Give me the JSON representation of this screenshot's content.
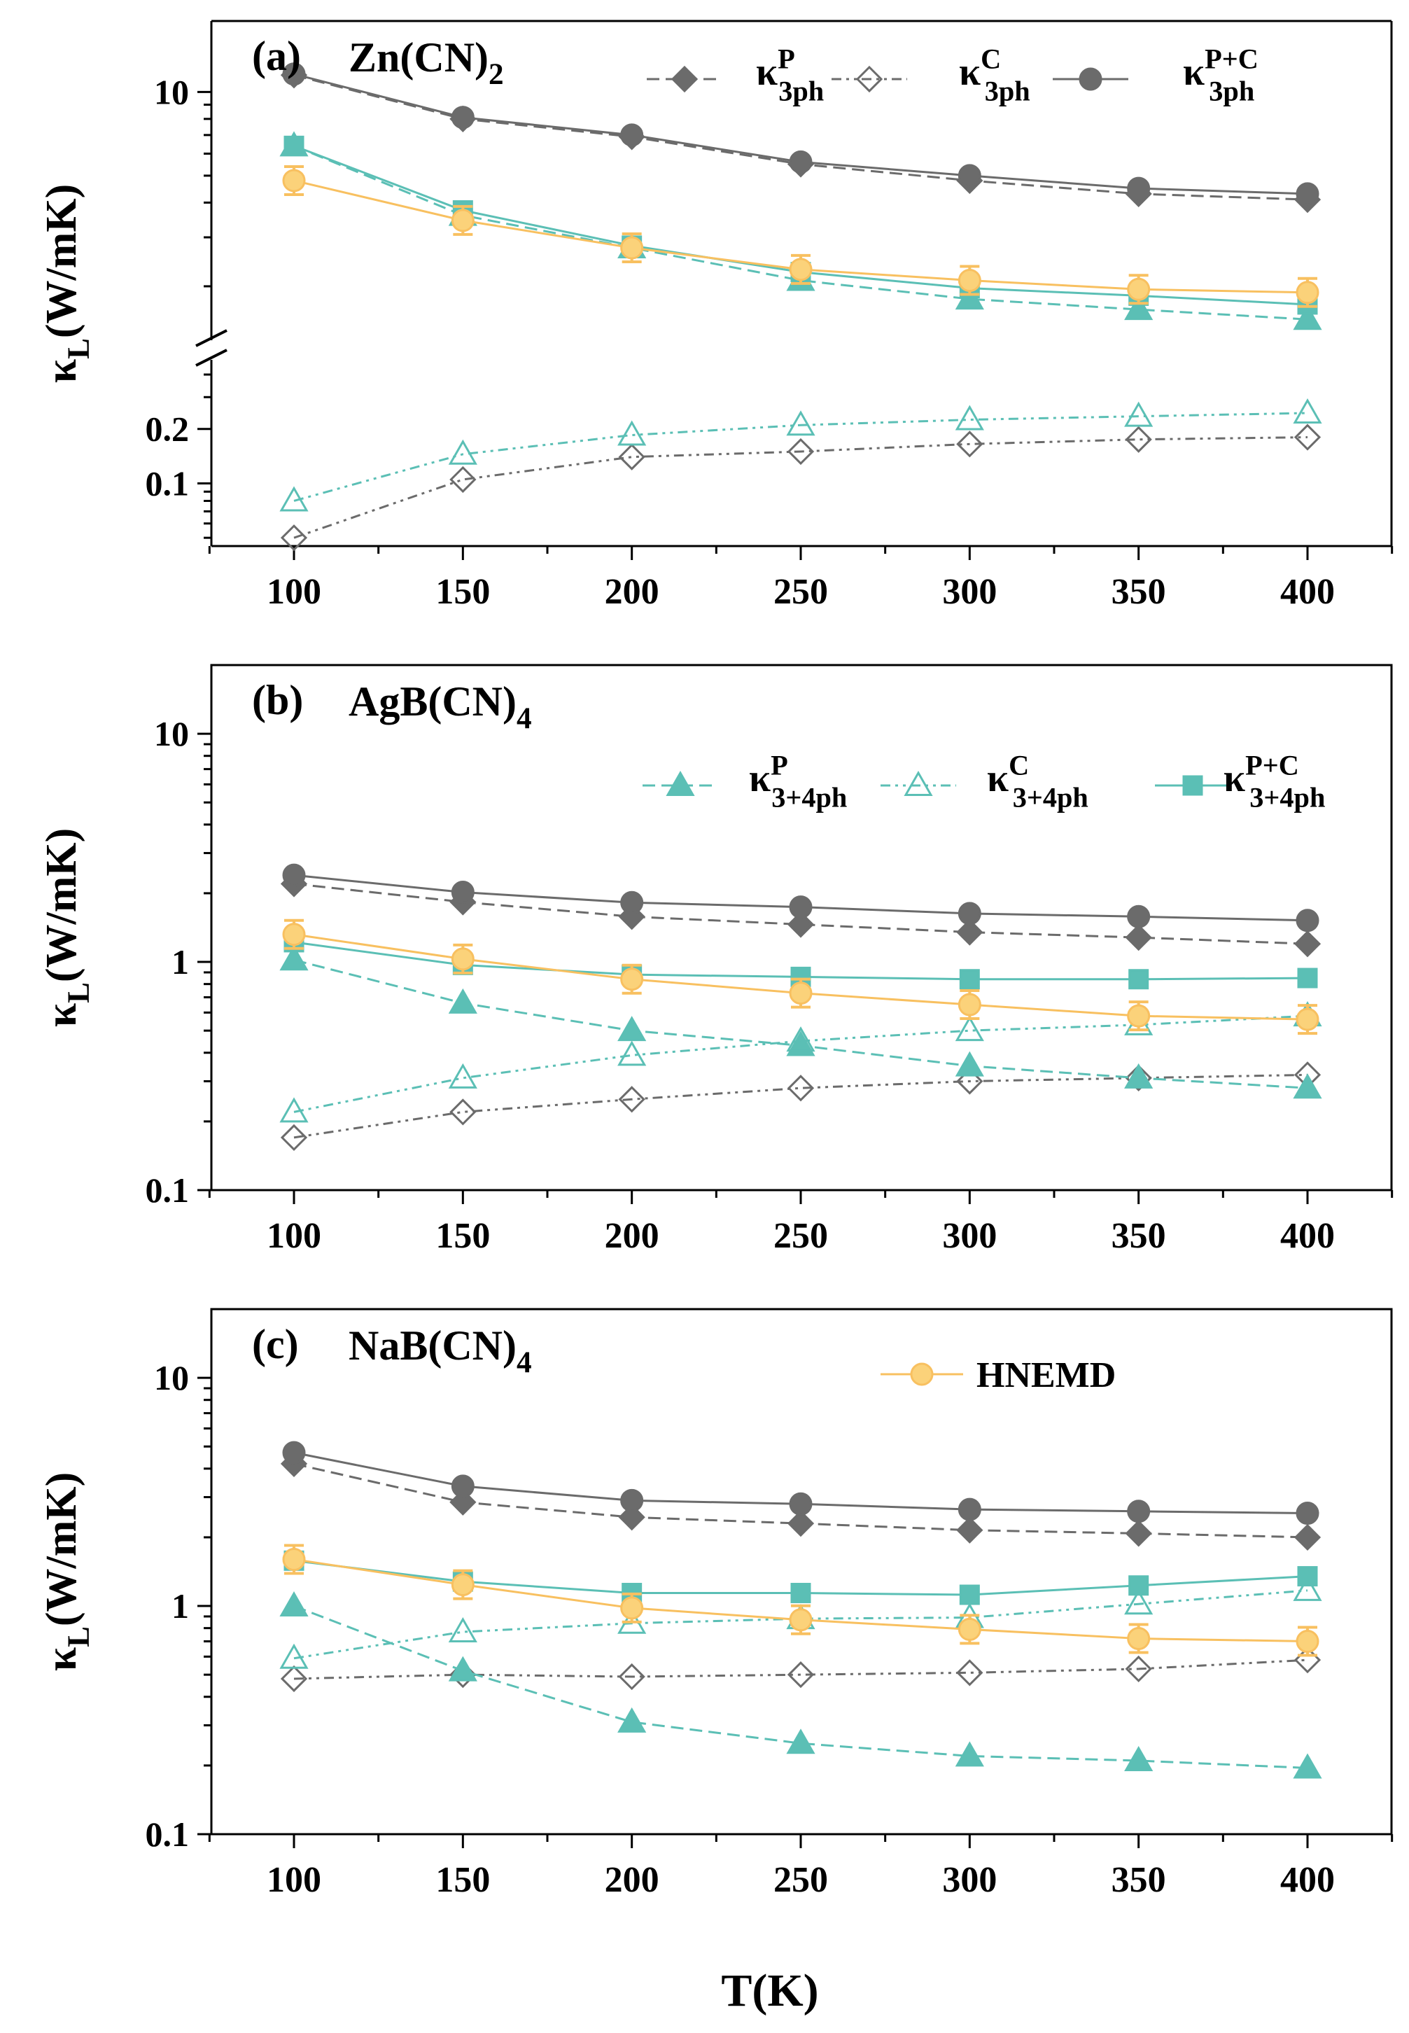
{
  "colors": {
    "gray": "#6b6b6b",
    "teal": "#5bbfb5",
    "orange": "#f8c060",
    "orange_fill": "#fbd27a"
  },
  "chart_data": [
    {
      "type": "line",
      "panel_label": "(a)",
      "material": {
        "base": "Zn(CN)",
        "sub": "2"
      },
      "yscale": "log (broken axis)",
      "ylabel": {
        "base": "κ",
        "sub": "L",
        "rest": "(W/mK)"
      },
      "ylim_upper": [
        1.25,
        18
      ],
      "ylim_lower": [
        0.045,
        0.5
      ],
      "ytick_labels": [
        "10",
        "0.2",
        "0.1"
      ],
      "x": [
        100,
        150,
        200,
        250,
        300,
        350,
        400
      ],
      "xtick_labels": [
        "100",
        "150",
        "200",
        "250",
        "300",
        "350",
        "400"
      ],
      "legend": [
        {
          "base": "κ",
          "sub": "3ph",
          "sup": "P"
        },
        {
          "base": "κ",
          "sub": "3ph",
          "sup": "C"
        },
        {
          "base": "κ",
          "sub": "3ph",
          "sup": "P+C"
        }
      ],
      "series": [
        {
          "name": "κ3ph P",
          "values": [
            11.5,
            8.0,
            6.9,
            5.5,
            4.8,
            4.3,
            4.1
          ]
        },
        {
          "name": "κ3ph C",
          "values": [
            0.05,
            0.105,
            0.14,
            0.15,
            0.165,
            0.175,
            0.18
          ]
        },
        {
          "name": "κ3ph P+C",
          "values": [
            11.6,
            8.1,
            7.0,
            5.6,
            5.0,
            4.5,
            4.3
          ]
        },
        {
          "name": "κ3+4ph P",
          "values": [
            6.4,
            3.6,
            2.75,
            2.1,
            1.8,
            1.65,
            1.52
          ]
        },
        {
          "name": "κ3+4ph C",
          "values": [
            0.08,
            0.145,
            0.185,
            0.21,
            0.225,
            0.235,
            0.245
          ]
        },
        {
          "name": "κ3+4ph P+C",
          "values": [
            6.4,
            3.75,
            2.8,
            2.25,
            1.97,
            1.85,
            1.72
          ]
        },
        {
          "name": "HNEMD",
          "values": [
            4.8,
            3.45,
            2.75,
            2.3,
            2.1,
            1.95,
            1.9
          ]
        }
      ]
    },
    {
      "type": "line",
      "panel_label": "(b)",
      "material": {
        "base": "AgB(CN)",
        "sub": "4"
      },
      "yscale": "log",
      "ylabel": {
        "base": "κ",
        "sub": "L",
        "rest": "(W/mK)"
      },
      "ylim": [
        0.1,
        20
      ],
      "ytick_labels": [
        "10",
        "1",
        "0.1"
      ],
      "x": [
        100,
        150,
        200,
        250,
        300,
        350,
        400
      ],
      "xtick_labels": [
        "100",
        "150",
        "200",
        "250",
        "300",
        "350",
        "400"
      ],
      "legend": [
        {
          "base": "κ",
          "sub": "3+4ph",
          "sup": "P"
        },
        {
          "base": "κ",
          "sub": "3+4ph",
          "sup": "C"
        },
        {
          "base": "κ",
          "sub": "3+4ph",
          "sup": "P+C"
        }
      ],
      "series": [
        {
          "name": "κ3ph P",
          "values": [
            2.2,
            1.83,
            1.58,
            1.46,
            1.35,
            1.28,
            1.2
          ]
        },
        {
          "name": "κ3ph C",
          "values": [
            0.17,
            0.22,
            0.25,
            0.28,
            0.3,
            0.31,
            0.32
          ]
        },
        {
          "name": "κ3ph P+C",
          "values": [
            2.4,
            2.02,
            1.82,
            1.74,
            1.63,
            1.58,
            1.52
          ]
        },
        {
          "name": "κ3+4ph P",
          "values": [
            1.02,
            0.66,
            0.5,
            0.43,
            0.35,
            0.31,
            0.28
          ]
        },
        {
          "name": "κ3+4ph C",
          "values": [
            0.22,
            0.31,
            0.39,
            0.45,
            0.5,
            0.53,
            0.58
          ]
        },
        {
          "name": "κ3+4ph P+C",
          "values": [
            1.22,
            0.97,
            0.88,
            0.86,
            0.84,
            0.84,
            0.85
          ]
        },
        {
          "name": "HNEMD",
          "values": [
            1.32,
            1.03,
            0.84,
            0.73,
            0.65,
            0.58,
            0.56
          ]
        }
      ]
    },
    {
      "type": "line",
      "panel_label": "(c)",
      "material": {
        "base": "NaB(CN)",
        "sub": "4"
      },
      "yscale": "log",
      "ylabel": {
        "base": "κ",
        "sub": "L",
        "rest": "(W/mK)"
      },
      "ylim": [
        0.1,
        20
      ],
      "ytick_labels": [
        "10",
        "1",
        "0.1"
      ],
      "x": [
        100,
        150,
        200,
        250,
        300,
        350,
        400
      ],
      "xtick_labels": [
        "100",
        "150",
        "200",
        "250",
        "300",
        "350",
        "400"
      ],
      "xlabel": "T(K)",
      "legend": [
        {
          "base": "HNEMD"
        }
      ],
      "series": [
        {
          "name": "κ3ph P",
          "values": [
            4.2,
            2.85,
            2.45,
            2.3,
            2.15,
            2.08,
            2.0
          ]
        },
        {
          "name": "κ3ph C",
          "values": [
            0.48,
            0.5,
            0.49,
            0.5,
            0.51,
            0.53,
            0.58
          ]
        },
        {
          "name": "κ3ph P+C",
          "values": [
            4.7,
            3.35,
            2.9,
            2.8,
            2.65,
            2.6,
            2.55
          ]
        },
        {
          "name": "κ3+4ph P",
          "values": [
            1.0,
            0.52,
            0.31,
            0.25,
            0.22,
            0.21,
            0.195
          ]
        },
        {
          "name": "κ3+4ph C",
          "values": [
            0.59,
            0.77,
            0.84,
            0.88,
            0.89,
            1.02,
            1.17
          ]
        },
        {
          "name": "κ3+4ph P+C",
          "values": [
            1.58,
            1.28,
            1.14,
            1.14,
            1.12,
            1.23,
            1.35
          ]
        },
        {
          "name": "HNEMD",
          "values": [
            1.6,
            1.24,
            0.98,
            0.87,
            0.79,
            0.72,
            0.7
          ]
        }
      ]
    }
  ]
}
